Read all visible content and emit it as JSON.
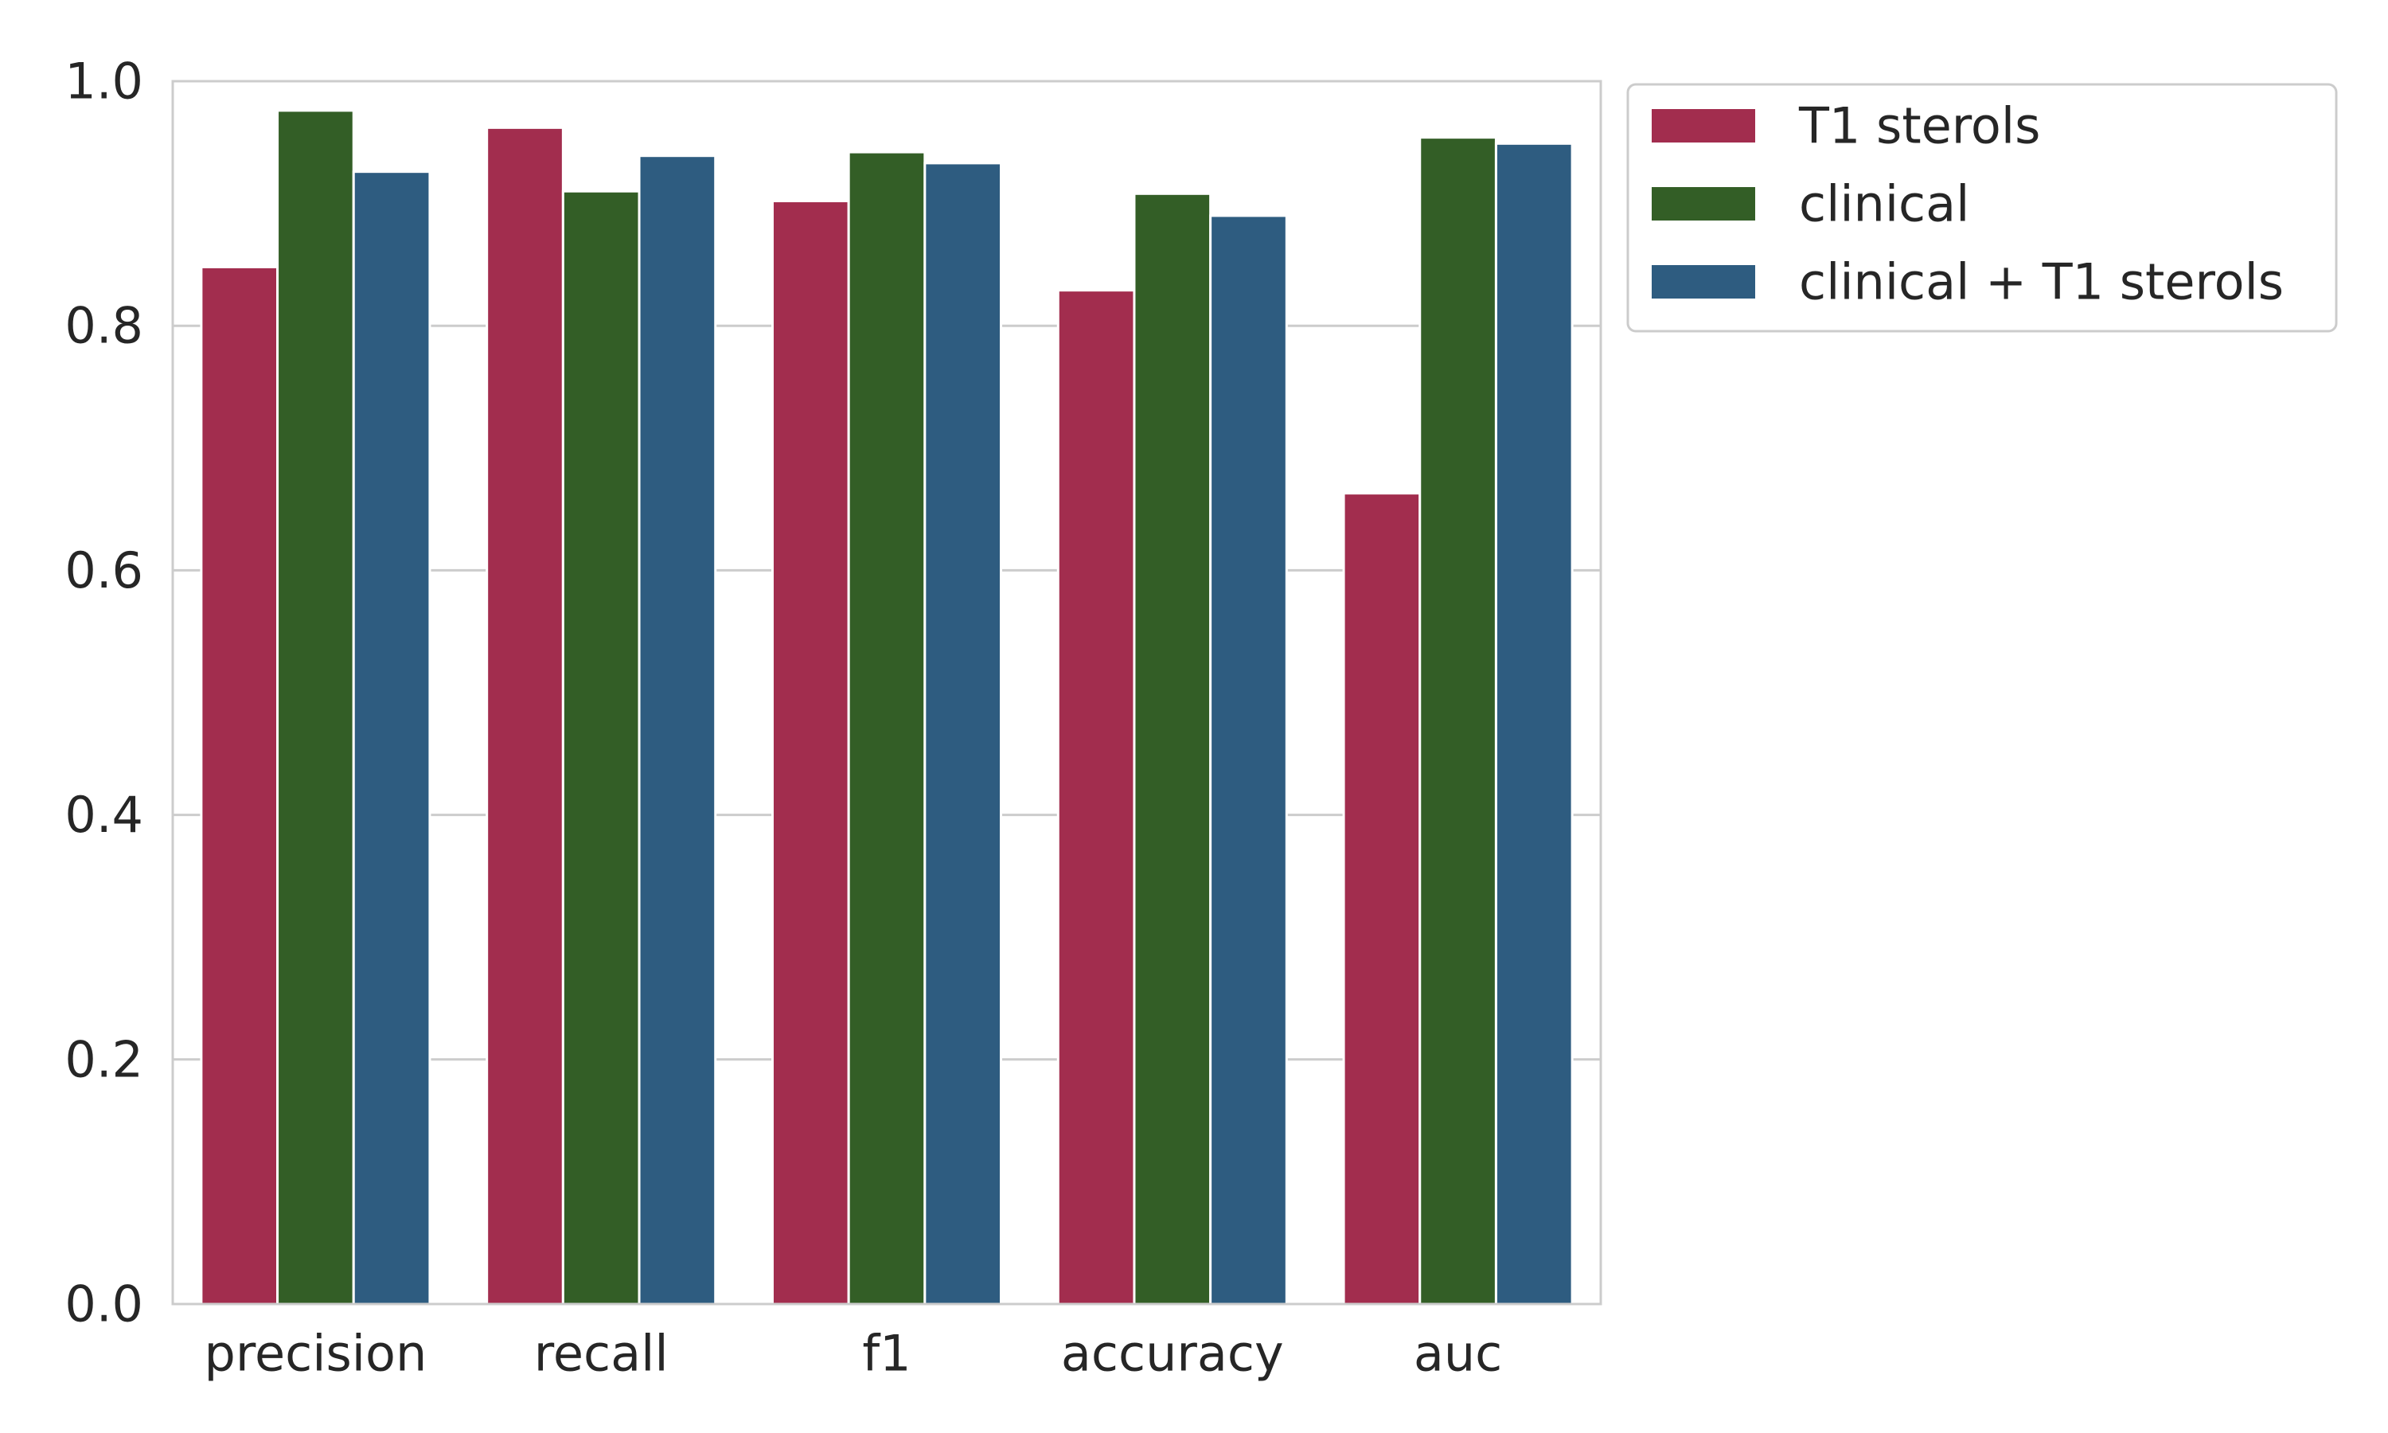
{
  "chart_data": {
    "type": "bar",
    "title": "",
    "xlabel": "",
    "ylabel": "",
    "ylim": [
      0,
      1.0
    ],
    "yticks": [
      0.0,
      0.2,
      0.4,
      0.6,
      0.8,
      1.0
    ],
    "ytick_labels": [
      "0.0",
      "0.2",
      "0.4",
      "0.6",
      "0.8",
      "1.0"
    ],
    "grid": true,
    "legend_position": "outside-top-right",
    "categories": [
      "precision",
      "recall",
      "f1",
      "accuracy",
      "auc"
    ],
    "series": [
      {
        "name": "T1 sterols",
        "color": "#A22D4E",
        "values": [
          0.848,
          0.962,
          0.902,
          0.829,
          0.663
        ]
      },
      {
        "name": "clinical",
        "color": "#335E26",
        "values": [
          0.976,
          0.91,
          0.942,
          0.908,
          0.954
        ]
      },
      {
        "name": "clinical + T1 sterols",
        "color": "#2E5C80",
        "values": [
          0.926,
          0.939,
          0.933,
          0.89,
          0.949
        ]
      }
    ]
  }
}
